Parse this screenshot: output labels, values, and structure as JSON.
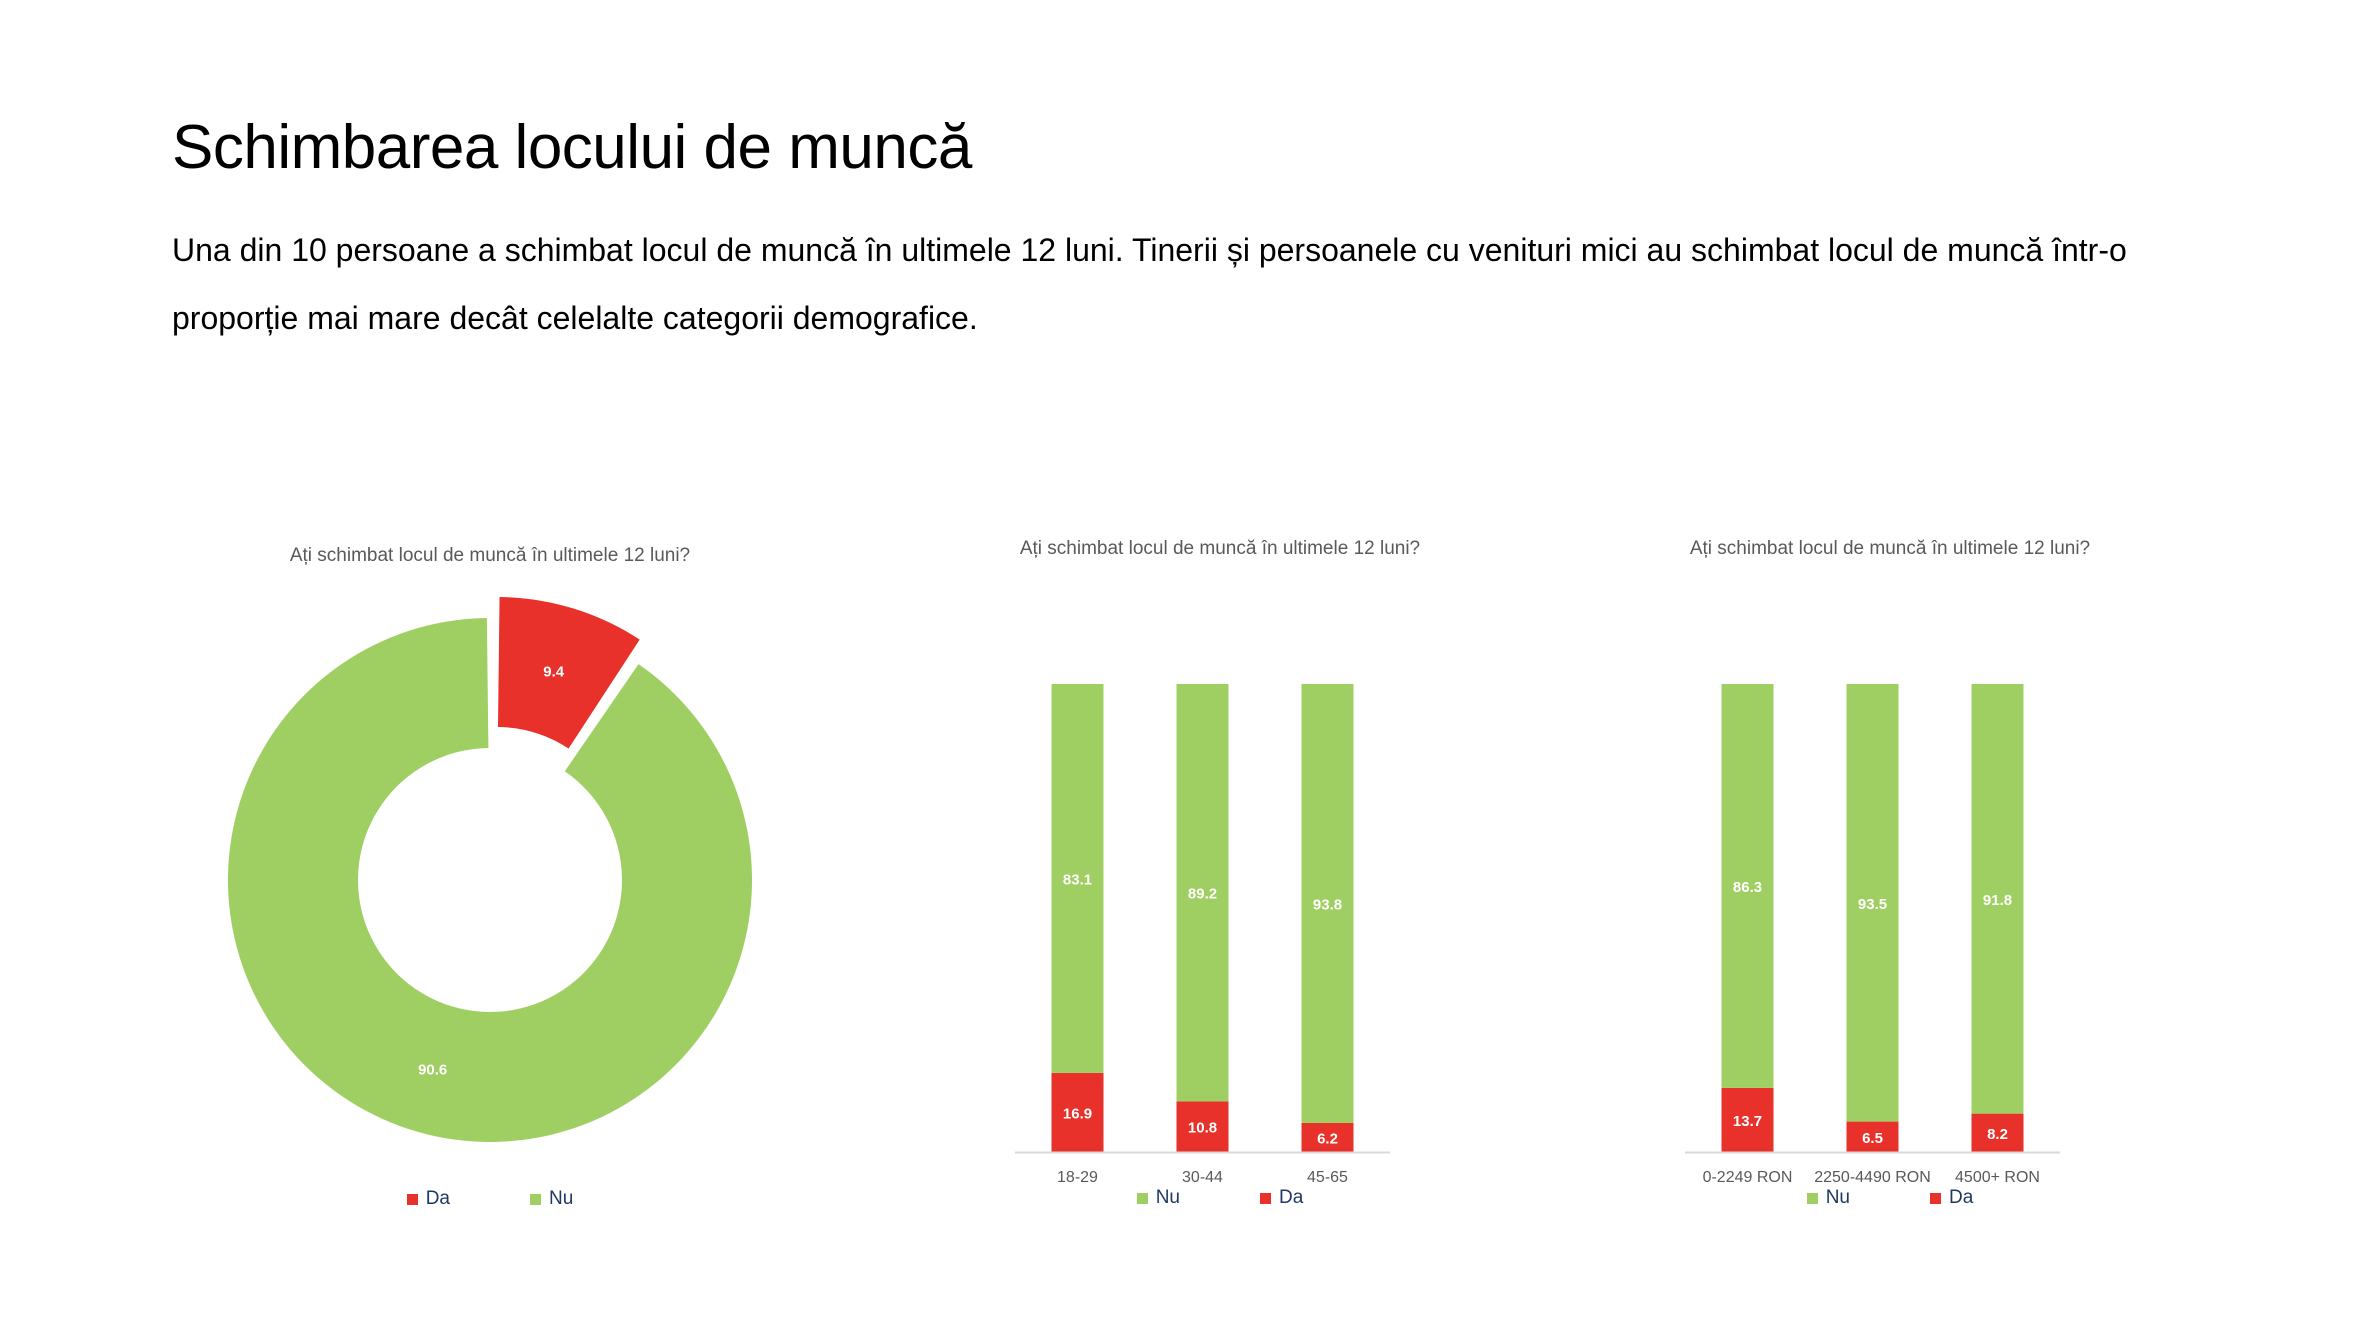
{
  "slide": {
    "title": "Schimbarea locului de muncă",
    "text": "Una din 10 persoane a schimbat locul de muncă în ultimele 12 luni. Tinerii și persoanele cu venituri mici au schimbat locul de muncă într-o proporție mai mare decât celelalte categorii demografice."
  },
  "colors": {
    "da": "#e8312a",
    "nu": "#9fcf63",
    "axis": "#d9d9d9",
    "label": "#595959"
  },
  "chart_data": [
    {
      "type": "pie",
      "subtype": "doughnut",
      "title": "Ați schimbat locul de muncă în ultimele 12 luni?",
      "categories": [
        "Da",
        "Nu"
      ],
      "values": [
        9.4,
        90.6
      ],
      "exploded": "Da",
      "legend": [
        "Da",
        "Nu"
      ],
      "legend_position": "bottom"
    },
    {
      "type": "bar",
      "subtype": "stacked-column-100",
      "title": "Ați schimbat locul de muncă în ultimele 12 luni?",
      "categories": [
        "18-29",
        "30-44",
        "45-65"
      ],
      "series": [
        {
          "name": "Nu",
          "values": [
            83.1,
            89.2,
            93.8
          ]
        },
        {
          "name": "Da",
          "values": [
            16.9,
            10.8,
            6.2
          ]
        }
      ],
      "legend": [
        "Nu",
        "Da"
      ],
      "legend_position": "bottom",
      "ylim": [
        0,
        100
      ]
    },
    {
      "type": "bar",
      "subtype": "stacked-column-100",
      "title": "Ați schimbat locul de muncă în ultimele 12 luni?",
      "categories": [
        "0-2249 RON",
        "2250-4490 RON",
        "4500+ RON"
      ],
      "series": [
        {
          "name": "Nu",
          "values": [
            86.3,
            93.5,
            91.8
          ]
        },
        {
          "name": "Da",
          "values": [
            13.7,
            6.5,
            8.2
          ]
        }
      ],
      "legend": [
        "Nu",
        "Da"
      ],
      "legend_position": "bottom",
      "ylim": [
        0,
        100
      ]
    }
  ]
}
